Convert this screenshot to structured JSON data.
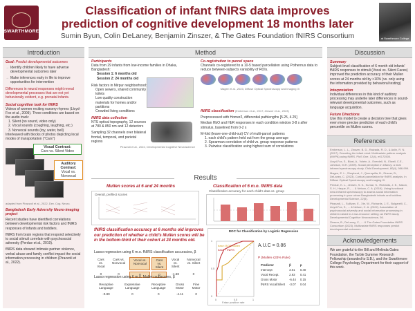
{
  "header": {
    "logo_text": "SWARTHMORE",
    "title_line1": "Classification of infant fNIRS data improves",
    "title_line2": "prediction of cognitive development 18 months later",
    "authors": "Sumin Byun, Colin DeLaney, Benjamin Zinszer, & The Gates Foundation fNIRS Consortium",
    "photo_caption": "at Swarthmore College"
  },
  "intro": {
    "heading": "Introduction",
    "goal_label": "Goal:",
    "goal_text": "Predict developmental outcomes",
    "bullets": [
      "Identify children likely to have adverse developmental outcomes later",
      "Make inferences early in life to improve opportunities for intervention"
    ],
    "differences": "Differences in neural responses might reveal developmental processes that are not yet behaviorally evident, e.g. prenatal infants.",
    "paradigm_title": "Social cognition task for fNIRS",
    "paradigm_text": "Videos of women reciting nursery rhymes (Lloyd-Fox et al., 2009). Three conditions are based on the audio track:",
    "conditions": [
      "1. Silent (no sound, video only)",
      "2. Vocal sounds (coughing, laughing, etc.)",
      "3. Nonvocal sounds (toy, water, bell)"
    ],
    "interleaved": "Interleaved with blocks of photos depicting local modes of transportation (\"Cars\")",
    "visual_contrast": "Visual Contrast:",
    "visual_contrast_2": "Cars vs. Silent Video",
    "auditory_contrast": "Auditory Contrast:",
    "auditory_contrast_2": "Vocal vs. Nonvocal",
    "figure_cite": "adapted from Pirazzoli et al., 2022, Dev. Cog. Neuro.",
    "bangladesh_title": "Bangladesh Early Adversity Neuro-imaging project",
    "bangladesh_p1": "Recent studies have identified correlations between developmental risk factors and fNIRS responses of infants and toddlers.",
    "bangladesh_p2": "fNIRS from brain regions that respond selectively to social stimuli correlate with psychosocial adversity (Perdue et al., 2019).",
    "bangladesh_p3": "fNIRS data showed intimate partner violence, verbal abuse and family conflict impact the social information processing in children (Pirazzoli et al., 2022)."
  },
  "method": {
    "heading": "Method",
    "participants_title": "Participants",
    "participants_text": "Data from 29 infants from low-income families in Dhaka, Bangladesh:",
    "session1": "Session 1: 6 months old",
    "session2": "Session 2: 24 months old",
    "risk_title": "Risk factors in Mirpur neighborhood:",
    "risk_items": [
      "Open sewers, shared community toilets",
      "Low quality construction materials for homes and/or partitions",
      "Crowded living conditions"
    ],
    "collection_title": "fNIRS data collection",
    "collection_text": "NTS optical topography, 12 sources at 780 & 850 nm and 12 detectors",
    "sampling_text": "Sampling 32 channels over bilateral frontal, temporal, and parietal regions",
    "collection_cite": "Pirazzoli et al., 2022, Developmental Cognitive Neuroscience",
    "coreg_title": "Co-registration to parcel space",
    "coreg_text": "Channels co-registered to a 10-5 based parcellation using Pothernus data to reduce between-subjects variability of ROIs.",
    "coreg_cite": "Magee et al., 2023, Diffuse Optical Spectroscopy and Imaging IX",
    "class_title": "fNIRS classification",
    "class_cite": "(Emberson et al., 2017; Zinszer et al., 2023)",
    "class_p1": "Preprocessed with Homer2, differential pathlengths [5.25, 4.25]",
    "class_p2": "Median HbO and HbR responses in each condition window 3-8 s after stimulus, baselined from 0-2 s",
    "class_p3": "M-fold (leave-one-child-out) CV of multi-parcel patterns",
    "class_steps": [
      "1. each child's pattern held out from the group average",
      "2. Spearman-correlation of child vs. group response patterns",
      "3. Pairwise classification using highest sum of correlations"
    ]
  },
  "results": {
    "heading": "Results",
    "mullen_title": "Mullen scores at 6 and 24 months",
    "mullen_sub": "Overall, preflect scores",
    "class_title": "Classification of 6 m.o. fNIRS data",
    "class_sub": "Classification accuracy for each child's data vs. group",
    "statement": "fNIRS classification accuracy at 6 months old improves our prediction of whether a child's Mullen scores will be in the bottom-third of their cohort at 24 months old.",
    "lasso1_title": "Lasso regression using 6 m.o. fNIRS classification accuracies, β",
    "lasso1_headers": [
      "Cars vs. Vocal",
      "Cars vs. Nonvocal",
      "Vocal vs. Nonvocal",
      "Cars vs. Silent",
      "Vocal vs. Silent",
      "Nonvocal vs. Silent"
    ],
    "lasso1_values": [
      "0",
      "0",
      "0",
      "0",
      "-1.68",
      "0"
    ],
    "lasso2_title": "Lasso regression using 6 m.o. Mullen subscores, β",
    "lasso2_headers": [
      "Receptive Language",
      "Expressive Language",
      "Receptive Language",
      "Gross Motor",
      "Fine Motor"
    ],
    "lasso2_values": [
      "-0.80",
      "0",
      "0",
      "-4.11",
      "0"
    ],
    "roc_title": "ROC for Classification by Logistic Regression",
    "roc_auc": "A.U.C = 0.86",
    "roc_prob": "P (Mullen ≤33% Rule)",
    "roc_header": [
      "Predictor",
      "β",
      "p"
    ],
    "roc_rows": [
      [
        "Intercept",
        "3.01",
        "0.40"
      ],
      [
        "Vocal Recept.",
        "2.93",
        "0.41"
      ],
      [
        "Gross Motor",
        "-6.44",
        "0.15"
      ],
      [
        "fNIRS Vocal/Silent",
        "-3.07",
        "0.04"
      ]
    ],
    "roc_xlabel": "False positive rate",
    "roc_ylabel": "True positive rate",
    "legend_a": "base: BOS/Mullen",
    "legend_b": "base + fNIRS"
  },
  "discussion": {
    "heading": "Discussion",
    "summary_title": "Summary",
    "summary_text": "Subject-level classification of 6 month old infants' fNIRS responses to stimuli (Vocal vs. Silent Faces) improved the prediction accuracy of their Mullen scores at 24 months old by >10% (vs. only using the information provided by behavioral testing)",
    "interp_title": "Interpretation",
    "interp_text": "Individual differences in this kind of auditory processing may underlie later differences in sound-relevant developmental outcomes, such as language acquisition.",
    "future_title": "Future Directions",
    "future_text": "Use this model to create a decision tree that gives even more precise prediction of each child's percentile on Mullen scores."
  },
  "references": {
    "heading": "References",
    "items": [
      "Emberson, L. L., Zinszer, B. D., Raizada, R. D., & Aslin, R. N. (2017). Decoding the infant mind: Multivariate pattern analysis (MVPA) using fNIRS. PloS One, 12(4), e0172500.",
      "Lloyd-Fox, S., Blasi, A., Volein, A., Everdell, N., Elwell, C.E., Johnson, M.H. (2009). Social perception in infancy: a near infrared spectroscopy study. Child Development, 80(4), 986-999.",
      "Magee, E. L., Shepherd, J., Quenquilla, B., Zinszer, B., DeLaney, C. (2023). Cortical parcellation for fNIRS analysis. In Diffuse Optical Spectroscopy and Imaging IX.",
      "Perdue, K. L., Jensen, S. K., Kumar, S., Richards, J. E., Kakon, S. H., Haque, R., ... & Nelson, C. A. (2019). Using functional near-infrared spectroscopy to assess social information processing in poor urban Bangladeshi infants and toddlers. Developmental Science, 22(5).",
      "Pirazzoli, L., Sullivan, E., Xie, W., Richards, J. E., Bulgarelli, C., Lloyd-Fox, S., ... & Nelson, C. A. (2022). Association of psychosocial adversity and social information processing in children raised in a low-resource setting: an fNIRS study. Developmental Cognitive Neuroscience, 56.",
      "Zinszer, B., DeLaney, C., ... & The Gates Foundation fNIRS Consortium (2023). Multivariate fNIRS responses predict developmental outcomes."
    ]
  },
  "acknowledgements": {
    "heading": "Acknowledgements",
    "text": "We are grateful to the Bill and Melinda Gates Foundation, the Tarble Summer Research Fellowship (awarded to S.B.), and the Swarthmore College Psychology Department for their support of this work."
  },
  "chart_data": {
    "type": "line",
    "title": "ROC for Classification by Logistic Regression",
    "xlabel": "False positive rate",
    "ylabel": "True positive rate",
    "xlim": [
      0,
      1
    ],
    "ylim": [
      0,
      1
    ],
    "series": [
      {
        "name": "base: BOS/Mullen",
        "x": [
          0,
          0.0,
          0.15,
          0.15,
          0.3,
          0.45,
          0.6,
          0.8,
          1.0
        ],
        "y": [
          0,
          0.3,
          0.3,
          0.55,
          0.6,
          0.7,
          0.8,
          0.9,
          1.0
        ]
      },
      {
        "name": "base + fNIRS",
        "x": [
          0,
          0.0,
          0.05,
          0.1,
          0.2,
          0.35,
          0.5,
          0.7,
          1.0
        ],
        "y": [
          0,
          0.45,
          0.55,
          0.7,
          0.85,
          0.9,
          0.95,
          1.0,
          1.0
        ]
      }
    ]
  }
}
